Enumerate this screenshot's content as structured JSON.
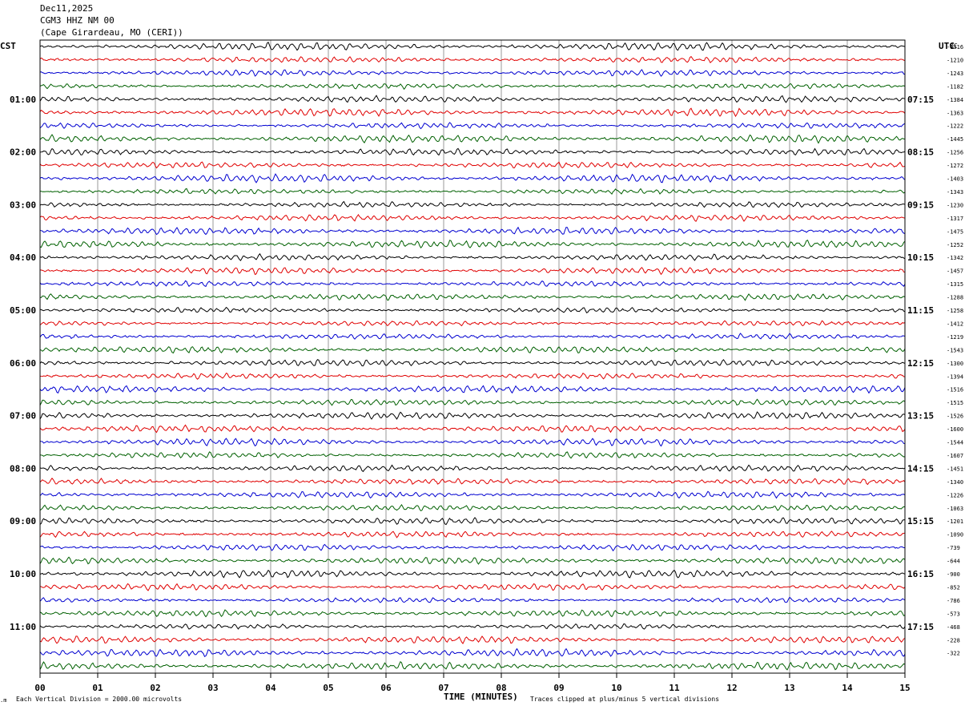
{
  "header": {
    "date": "Dec11,2025",
    "station": "CGM3 HHZ NM 00",
    "location": "(Cape Girardeau, MO (CERI))"
  },
  "labels": {
    "left_timezone": "CST",
    "right_timezone": "UTC",
    "dc_header": "DC"
  },
  "footer": {
    "scale_note": "Each Vertical Division = 2000.00 microvolts",
    "xlabel": "TIME (MINUTES)",
    "clip_note": "Traces clipped at plus/minus 5 vertical divisions"
  },
  "chart_data": {
    "type": "line",
    "xlabel": "TIME (MINUTES)",
    "x_ticks": [
      "00",
      "01",
      "02",
      "03",
      "04",
      "05",
      "06",
      "07",
      "08",
      "09",
      "10",
      "11",
      "12",
      "13",
      "14",
      "15"
    ],
    "xlim": [
      0,
      15
    ],
    "grid": true,
    "trace_count": 48,
    "trace_colors": [
      "#000000",
      "#e00000",
      "#0000d0",
      "#006000"
    ],
    "left_hour_labels": [
      "01:00",
      "02:00",
      "03:00",
      "04:00",
      "05:00",
      "06:00",
      "07:00",
      "08:00",
      "09:00",
      "10:00",
      "11:00"
    ],
    "right_hour_labels": [
      "07:15",
      "08:15",
      "09:15",
      "10:15",
      "11:15",
      "12:15",
      "13:15",
      "14:15",
      "15:15",
      "16:15",
      "17:15"
    ],
    "dc_offsets": [
      "-1316",
      "-1210",
      "-1243",
      "-1182",
      "-1384",
      "-1363",
      "-1222",
      "-1445",
      "-1256",
      "-1272",
      "-1403",
      "-1343",
      "-1230",
      "-1317",
      "-1475",
      "-1252",
      "-1342",
      "-1457",
      "-1315",
      "-1288",
      "-1258",
      "-1412",
      "-1219",
      "-1543",
      "-1300",
      "-1394",
      "-1516",
      "-1515",
      "-1526",
      "-1600",
      "-1544",
      "-1607",
      "-1451",
      "-1340",
      "-1226",
      "-1063",
      "-1201",
      "-1090",
      "-739",
      "-644",
      "-900",
      "-852",
      "-786",
      "-573",
      "-468",
      "-228",
      "-322"
    ]
  }
}
